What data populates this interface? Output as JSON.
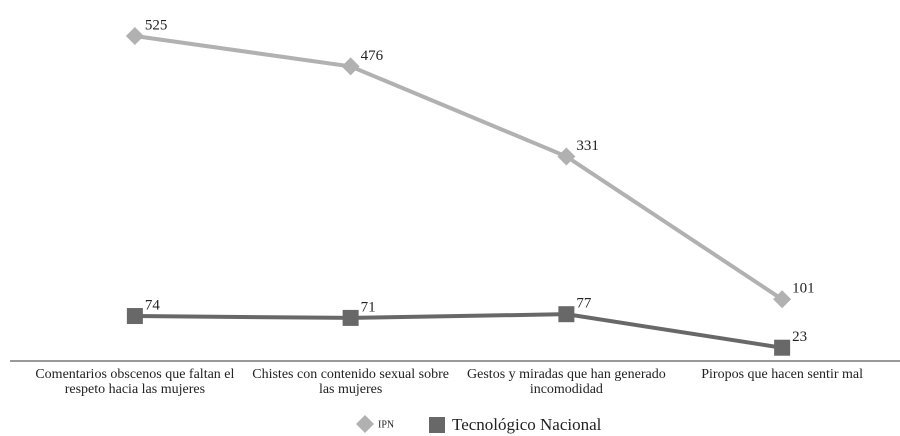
{
  "chart_data": {
    "type": "line",
    "categories": [
      "Comentarios obscenos que faltan el respeto hacia las mujeres",
      "Chistes con contenido sexual sobre las mujeres",
      "Gestos y miradas que han generado incomodidad",
      "Piropos que hacen sentir mal"
    ],
    "series": [
      {
        "name": "IPN",
        "color": "#b1b1b1",
        "marker": "diamond",
        "values": [
          525,
          476,
          331,
          101
        ]
      },
      {
        "name": "Tecnológico Nacional",
        "color": "#686868",
        "marker": "square",
        "values": [
          74,
          71,
          77,
          23
        ]
      }
    ]
  }
}
